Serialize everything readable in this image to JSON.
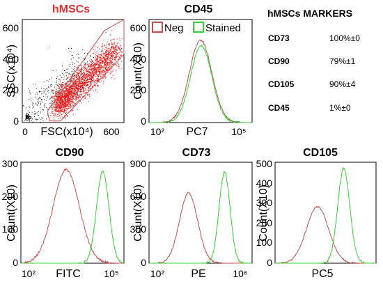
{
  "chart_data": [
    {
      "id": "scatter",
      "type": "scatter",
      "title": "hMSCs",
      "xlabel": "FSC(x10⁴)",
      "ylabel": "SSC(x10⁴)",
      "xlim": [
        0,
        650
      ],
      "ylim": [
        0,
        650
      ],
      "x_ticks": [
        "0",
        "600"
      ],
      "y_ticks": [
        "0",
        "200",
        "400",
        "600"
      ],
      "gate_polygon": [
        [
          160,
          70
        ],
        [
          525,
          580
        ],
        [
          650,
          650
        ],
        [
          650,
          430
        ],
        [
          245,
          10
        ],
        [
          175,
          10
        ]
      ],
      "colors": {
        "title": "#e03030",
        "dense": "#e81c1c",
        "sparse": "#101010",
        "gate": "#c0504d"
      }
    },
    {
      "id": "cd45",
      "type": "line",
      "title": "CD45",
      "xlabel": "PC7",
      "ylabel": "Count(X10)",
      "x_log": true,
      "xlim": [
        2,
        5.4
      ],
      "ylim": [
        0,
        650
      ],
      "x_ticks": [
        "10²",
        "10⁵"
      ],
      "y_ticks": [
        "0",
        "200",
        "400",
        "600"
      ],
      "legend": {
        "position": "top",
        "entries": [
          "Neg",
          "Stained"
        ]
      },
      "series": [
        {
          "name": "Neg",
          "color": "#c0504d",
          "mu": 3.7,
          "sigma": 0.37,
          "peak": 520
        },
        {
          "name": "Stained",
          "color": "#39cc39",
          "mu": 3.72,
          "sigma": 0.35,
          "peak": 485
        }
      ]
    },
    {
      "id": "cd90",
      "type": "line",
      "title": "CD90",
      "xlabel": "FITC",
      "ylabel": "Count(X10)",
      "x_log": true,
      "xlim": [
        1.9,
        5.2
      ],
      "ylim": [
        0,
        300
      ],
      "x_ticks": [
        "10²",
        "10⁵"
      ],
      "y_ticks": [
        "0",
        "100",
        "200",
        "300"
      ],
      "series": [
        {
          "name": "",
          "color": "#c0504d",
          "mu": 3.35,
          "sigma": 0.42,
          "peak": 278
        },
        {
          "name": "",
          "color": "#39cc39",
          "mu": 4.52,
          "sigma": 0.2,
          "peak": 272
        }
      ]
    },
    {
      "id": "cd73",
      "type": "line",
      "title": "CD73",
      "xlabel": "PE",
      "ylabel": "Count(X10)",
      "x_log": true,
      "xlim": [
        1.9,
        6.2
      ],
      "ylim": [
        0,
        900
      ],
      "x_ticks": [
        "10²",
        "10⁶"
      ],
      "y_ticks": [
        "0",
        "300",
        "600",
        "900"
      ],
      "series": [
        {
          "name": "",
          "color": "#c0504d",
          "mu": 3.55,
          "sigma": 0.38,
          "peak": 625
        },
        {
          "name": "",
          "color": "#39cc39",
          "mu": 5.05,
          "sigma": 0.23,
          "peak": 810
        }
      ]
    },
    {
      "id": "cd105",
      "type": "line",
      "title": "CD105",
      "xlabel": "PC5",
      "ylabel": "Count(X10)",
      "x_log": false,
      "xlim": [
        0,
        1
      ],
      "ylim": [
        0,
        500
      ],
      "x_ticks": [],
      "y_ticks": [
        "0",
        "100",
        "200",
        "300",
        "400",
        "500"
      ],
      "series": [
        {
          "name": "",
          "color": "#c0504d",
          "mu": 0.42,
          "sigma": 0.11,
          "peak": 280
        },
        {
          "name": "",
          "color": "#39cc39",
          "mu": 0.68,
          "sigma": 0.06,
          "peak": 470
        }
      ]
    }
  ],
  "markers": {
    "title": "hMSCs MARKERS",
    "rows": [
      {
        "name": "CD73",
        "value": "100%±0"
      },
      {
        "name": "CD90",
        "value": "79%±1"
      },
      {
        "name": "CD105",
        "value": "90%±4"
      },
      {
        "name": "CD45",
        "value": "1%±0"
      }
    ]
  }
}
